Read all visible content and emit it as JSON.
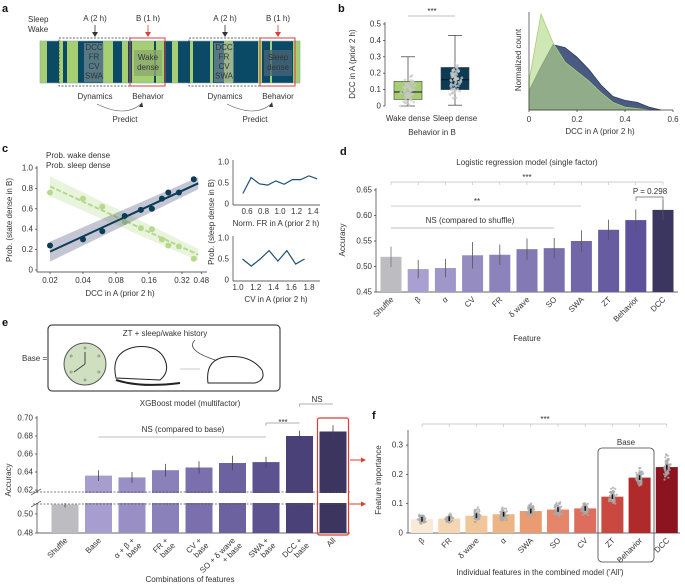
{
  "panel_labels": [
    "a",
    "b",
    "c",
    "d",
    "e",
    "f"
  ],
  "panel_a": {
    "legend_sleep": "Sleep",
    "legend_wake": "Wake",
    "window_a": "A (2 h)",
    "window_b": "B (1 h)",
    "features": [
      "DCC",
      "FR",
      "CV",
      "SWA"
    ],
    "outcome_left": [
      "Wake",
      "dense"
    ],
    "outcome_right": [
      "Sleep",
      "dense"
    ],
    "dynamics": "Dynamics",
    "behavior": "Behavior",
    "predict": "Predict",
    "colors": {
      "sleep": "#0b4a66",
      "wake": "#a6cf73",
      "accent": "#d6403f"
    },
    "hypnogram": [
      [
        "W",
        7
      ],
      [
        "S",
        12
      ],
      [
        "W",
        4
      ],
      [
        "S",
        4
      ],
      [
        "W",
        11
      ],
      [
        "S",
        25
      ],
      [
        "W",
        10
      ],
      [
        "S",
        9
      ],
      [
        "W",
        6
      ],
      [
        "S",
        4
      ],
      [
        "W",
        22
      ],
      [
        "S",
        2
      ],
      [
        "W",
        8
      ],
      [
        "S",
        8
      ],
      [
        "W",
        6
      ],
      [
        "S",
        12
      ],
      [
        "W",
        3
      ],
      [
        "S",
        17
      ],
      [
        "W",
        3
      ],
      [
        "S",
        11
      ],
      [
        "W",
        9
      ],
      [
        "S",
        25
      ],
      [
        "W",
        4
      ],
      [
        "S",
        8
      ],
      [
        "W",
        2
      ],
      [
        "S",
        21
      ],
      [
        "W",
        7
      ]
    ]
  },
  "panel_e_illustration": {
    "base_label": "Base =",
    "caption": "ZT + sleep/wake history"
  },
  "chart_data": [
    {
      "id": "b_box",
      "type": "box",
      "ylabel": "DCC in A (prior 2 h)",
      "xlabel": "Behavior in B",
      "yticks": [
        0,
        0.1,
        0.2,
        0.3,
        0.4,
        0.5
      ],
      "ytick_labels": [
        "0",
        "0.1",
        "0.2",
        "0.3",
        "0.4",
        "0.5"
      ],
      "ylim": [
        0,
        0.5
      ],
      "significance": "***",
      "groups": [
        {
          "name": "Wake dense",
          "color": "#a6cf73",
          "whisker_low": 0.0,
          "q1": 0.04,
          "median": 0.085,
          "q3": 0.15,
          "whisker_high": 0.3
        },
        {
          "name": "Sleep dense",
          "color": "#0b3b55",
          "whisker_low": 0.005,
          "q1": 0.1,
          "median": 0.16,
          "q3": 0.235,
          "whisker_high": 0.43
        }
      ]
    },
    {
      "id": "b_density",
      "type": "area",
      "xlabel": "DCC in A (prior 2 h)",
      "ylabel": "Normalized count",
      "xticks": [
        0,
        0.2,
        0.4,
        0.6
      ],
      "xtick_labels": [
        "0",
        "0.2",
        "0.4",
        "0.6"
      ],
      "xlim": [
        0,
        0.6
      ],
      "series": [
        {
          "name": "Sleep dense",
          "color": "#4a5a82",
          "points": [
            [
              0,
              0.2
            ],
            [
              0.05,
              0.45
            ],
            [
              0.1,
              0.68
            ],
            [
              0.15,
              0.65
            ],
            [
              0.2,
              0.55
            ],
            [
              0.25,
              0.42
            ],
            [
              0.3,
              0.26
            ],
            [
              0.35,
              0.14
            ],
            [
              0.4,
              0.1
            ],
            [
              0.45,
              0.08
            ],
            [
              0.5,
              0.03
            ],
            [
              0.55,
              0
            ]
          ]
        },
        {
          "name": "Wake dense",
          "color": "#b6d98e",
          "points": [
            [
              0,
              0.3
            ],
            [
              0.05,
              1.0
            ],
            [
              0.1,
              0.7
            ],
            [
              0.15,
              0.5
            ],
            [
              0.2,
              0.4
            ],
            [
              0.25,
              0.3
            ],
            [
              0.3,
              0.18
            ],
            [
              0.35,
              0.08
            ],
            [
              0.4,
              0.03
            ],
            [
              0.5,
              0
            ]
          ]
        }
      ]
    },
    {
      "id": "c_main",
      "type": "scatter",
      "xlabel": "DCC in A (prior 2 h)",
      "ylabel": "Prob. (state dense in B)",
      "xscale": "log2",
      "xticks": [
        0.02,
        0.04,
        0.08,
        0.16,
        0.32,
        0.48
      ],
      "xtick_labels": [
        "0.02",
        "0.04",
        "0.08",
        "0.16",
        "0.32",
        "0.48"
      ],
      "yticks": [
        0,
        0.2,
        0.4,
        0.6,
        0.8,
        1.0
      ],
      "ytick_labels": [
        "0",
        "0.2",
        "0.4",
        "0.6",
        "0.8",
        "1.0"
      ],
      "ylim": [
        0,
        1
      ],
      "series": [
        {
          "name": "Prob. wake dense",
          "color": "#b6d98e",
          "fit": [
            [
              0.02,
              0.82
            ],
            [
              0.45,
              0.15
            ]
          ],
          "x": [
            0.02,
            0.04,
            0.06,
            0.096,
            0.135,
            0.17,
            0.21,
            0.24,
            0.3,
            0.41
          ],
          "y": [
            0.76,
            0.7,
            0.62,
            0.47,
            0.41,
            0.4,
            0.3,
            0.24,
            0.23,
            0.11
          ]
        },
        {
          "name": "Prob. sleep dense",
          "color": "#0b3b55",
          "fit": [
            [
              0.02,
              0.18
            ],
            [
              0.45,
              0.85
            ]
          ],
          "x": [
            0.02,
            0.04,
            0.06,
            0.096,
            0.135,
            0.17,
            0.21,
            0.24,
            0.3,
            0.41
          ],
          "y": [
            0.24,
            0.3,
            0.38,
            0.53,
            0.59,
            0.6,
            0.7,
            0.76,
            0.76,
            0.89
          ]
        }
      ]
    },
    {
      "id": "c_fr",
      "type": "line",
      "xlabel": "Norm. FR in A (prior 2 h)",
      "shared_ylabel": "Prob. (sleep dense in B)",
      "xticks": [
        0.6,
        0.8,
        1.0,
        1.2,
        1.4
      ],
      "xtick_labels": [
        "0.6",
        "0.8",
        "1.0",
        "1.2",
        "1.4"
      ],
      "yticks": [
        0,
        0.5,
        1.0
      ],
      "ytick_labels": [
        "0",
        "0.5",
        "1.0"
      ],
      "x": [
        0.55,
        0.65,
        0.75,
        0.85,
        0.95,
        1.05,
        1.15,
        1.25,
        1.35,
        1.45
      ],
      "y": [
        0.25,
        0.63,
        0.48,
        0.45,
        0.55,
        0.47,
        0.58,
        0.58,
        0.67,
        0.6
      ],
      "color": "#1f4f70"
    },
    {
      "id": "c_cv",
      "type": "line",
      "xlabel": "CV in A (prior 2 h)",
      "xticks": [
        1.0,
        1.2,
        1.4,
        1.6,
        1.8
      ],
      "xtick_labels": [
        "1.0",
        "1.2",
        "1.4",
        "1.6",
        "1.8"
      ],
      "yticks": [
        0,
        0.5,
        1.0
      ],
      "ytick_labels": [
        "0",
        "0.5",
        "1.0"
      ],
      "x": [
        1.05,
        1.15,
        1.25,
        1.35,
        1.45,
        1.55,
        1.65,
        1.75
      ],
      "y": [
        0.5,
        0.33,
        0.5,
        0.7,
        0.45,
        0.7,
        0.38,
        0.5
      ],
      "color": "#1f4f70"
    },
    {
      "id": "d",
      "type": "bar",
      "title": "Logistic regression model (single factor)",
      "xlabel": "Feature",
      "ylabel": "Accuracy",
      "yticks": [
        0.45,
        0.5,
        0.55,
        0.6,
        0.65
      ],
      "ytick_labels": [
        "0.45",
        "0.50",
        "0.55",
        "0.60",
        "0.65"
      ],
      "ylim": [
        0.45,
        0.65
      ],
      "categories": [
        "Shuffle",
        "β",
        "α",
        "CV",
        "FR",
        "δ wave",
        "SO",
        "SWA",
        "ZT",
        "Behavior",
        "DCC"
      ],
      "values": [
        0.519,
        0.495,
        0.497,
        0.522,
        0.523,
        0.534,
        0.536,
        0.55,
        0.572,
        0.591,
        0.611
      ],
      "errors": [
        0.02,
        0.018,
        0.018,
        0.026,
        0.02,
        0.021,
        0.02,
        0.021,
        0.02,
        0.021,
        0.019
      ],
      "colors": [
        "#bdbdc1",
        "#a99fd0",
        "#9f96ca",
        "#958cc2",
        "#8c83bc",
        "#8379b5",
        "#7a70ae",
        "#7066a8",
        "#675ca2",
        "#5d519b",
        "#3b3660"
      ],
      "annotations": {
        "all": "***",
        "swa": "**",
        "ns": "NS (compared to shuffle)",
        "p": "P = 0.298"
      }
    },
    {
      "id": "e",
      "type": "bar",
      "title": "XGBoost model (multifactor)",
      "xlabel": "Combinations of features",
      "ylabel": "Accuracy",
      "yticks": [
        0.48,
        0.5,
        0.62,
        0.64,
        0.66,
        0.68,
        0.7
      ],
      "ytick_labels": [
        "0.48",
        "0.50",
        "0.62",
        "0.64",
        "0.66",
        "0.68",
        "0.70"
      ],
      "axis_break": [
        0.5,
        0.62
      ],
      "categories": [
        [
          "Shuffle"
        ],
        [
          "Base"
        ],
        [
          "α + β +",
          "base"
        ],
        [
          "FR +",
          "base"
        ],
        [
          "CV +",
          "base"
        ],
        [
          "SO + δ wave",
          "+ base"
        ],
        [
          "SWA +",
          "base"
        ],
        [
          "DCC +",
          "base"
        ],
        [
          "All"
        ]
      ],
      "values": [
        0.51,
        0.636,
        0.634,
        0.642,
        0.645,
        0.65,
        0.651,
        0.68,
        0.685
      ],
      "errors": [
        0.003,
        0.006,
        0.006,
        0.007,
        0.007,
        0.008,
        0.006,
        0.006,
        0.007
      ],
      "colors": [
        "#bdbdc1",
        "#a79ecf",
        "#9a8fc5",
        "#8a80ba",
        "#7b70ad",
        "#6d62a0",
        "#5c5290",
        "#4a4178",
        "#3b3560"
      ],
      "annotations": {
        "ns_all": "NS",
        "dcc": "***",
        "ns": "NS (compared to base)"
      },
      "highlight": "All"
    },
    {
      "id": "f",
      "type": "bar",
      "xlabel": "Individual features in the combined model ('All')",
      "ylabel": "Feature importance",
      "yticks": [
        0,
        0.1,
        0.2,
        0.3
      ],
      "ytick_labels": [
        "0",
        "0.1",
        "0.2",
        "0.3"
      ],
      "ylim": [
        0,
        0.35
      ],
      "categories": [
        "β",
        "FR",
        "δ wave",
        "α",
        "SWA",
        "SO",
        "CV",
        "ZT",
        "Behavior",
        "DCC"
      ],
      "values": [
        0.047,
        0.049,
        0.059,
        0.064,
        0.075,
        0.08,
        0.084,
        0.124,
        0.189,
        0.225
      ],
      "spread": [
        0.02,
        0.02,
        0.035,
        0.03,
        0.03,
        0.035,
        0.03,
        0.035,
        0.05,
        0.06
      ],
      "colors": [
        "#f8ead6",
        "#f5d6b2",
        "#f1c699",
        "#edb585",
        "#eb9b72",
        "#e5866a",
        "#dd6e5d",
        "#c94840",
        "#b02a2c",
        "#8b1420"
      ],
      "annotations": {
        "all": "***",
        "base": "Base"
      }
    }
  ]
}
